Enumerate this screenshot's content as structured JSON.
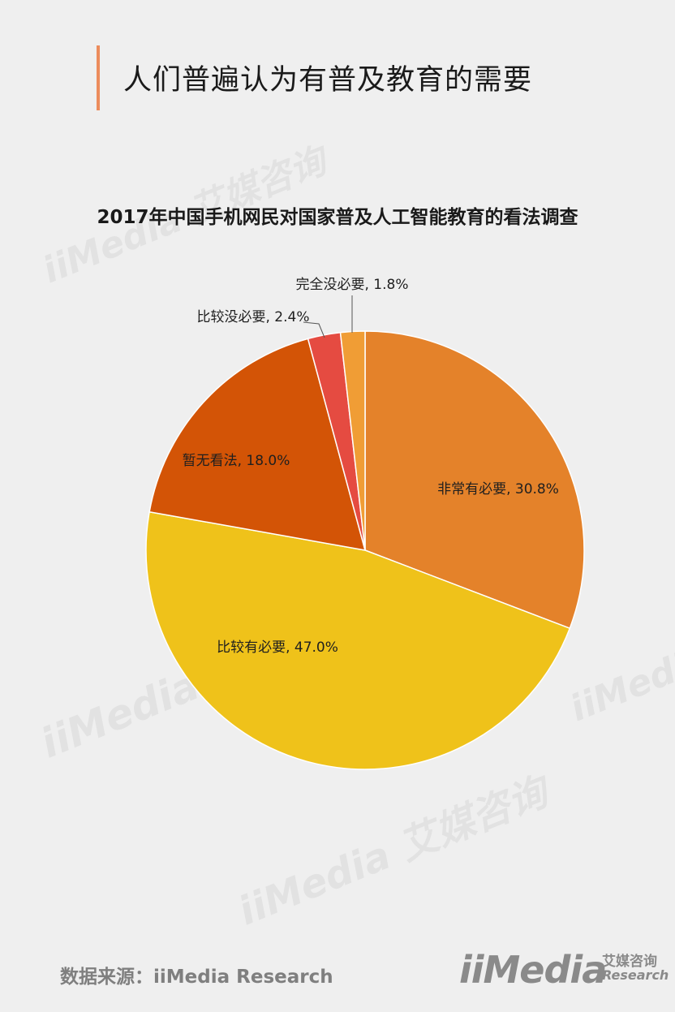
{
  "page": {
    "title": "人们普遍认为有普及教育的需要",
    "source": "数据来源：iiMedia Research"
  },
  "brand": {
    "name": "iiMedia",
    "cn_name": "艾媒咨询",
    "sub_name": "Research",
    "watermark": "iiMedia 艾媒咨询"
  },
  "colors": {
    "background": "#efefef",
    "accent_bar": "#ec8c5c"
  },
  "chart_data": {
    "type": "pie",
    "title": "2017年中国手机网民对国家普及人工智能教育的看法调查",
    "start": "12 o'clock",
    "direction": "clockwise",
    "slices": [
      {
        "label": "非常有必要",
        "value": 30.8,
        "display": "非常有必要, 30.8%",
        "color": "#e4822a"
      },
      {
        "label": "比较有必要",
        "value": 47.0,
        "display": "比较有必要, 47.0%",
        "color": "#efc21a"
      },
      {
        "label": "暂无看法",
        "value": 18.0,
        "display": "暂无看法, 18.0%",
        "color": "#d35406"
      },
      {
        "label": "比较没必要",
        "value": 2.4,
        "display": "比较没必要, 2.4%",
        "color": "#e54b41"
      },
      {
        "label": "完全没必要",
        "value": 1.8,
        "display": "完全没必要, 1.8%",
        "color": "#f09d35"
      }
    ]
  }
}
